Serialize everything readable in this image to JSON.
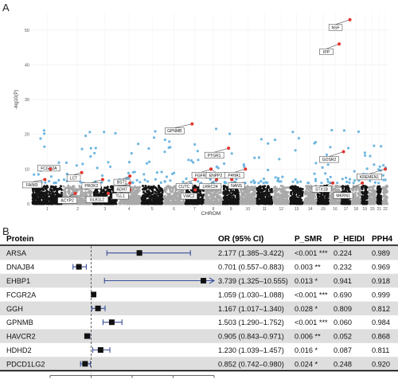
{
  "panel_a": {
    "letter": "A",
    "chart_data": {
      "type": "scatter",
      "title": "",
      "xlabel": "CHROM",
      "ylabel": "-log10(P)",
      "ylim": [
        0,
        55
      ],
      "yticks": [
        0,
        10,
        20,
        30,
        40,
        50
      ],
      "xticks": [
        "1",
        "2",
        "3",
        "4",
        "5",
        "6",
        "7",
        "8",
        "9",
        "10",
        "11",
        "12",
        "13",
        "14",
        "15",
        "16",
        "17",
        "18",
        "19",
        "20",
        "21",
        "22"
      ],
      "grid": true,
      "colors": {
        "nonsig_odd": "#141414",
        "nonsig_even": "#a9a9a9",
        "significant": "#6fb6e0",
        "labeled": "#e2342d"
      },
      "labeled_points": [
        {
          "label": "NSF",
          "chrom": 17,
          "p": 53
        },
        {
          "label": "IPP",
          "chrom": 16,
          "p": 46
        },
        {
          "label": "GPNMB",
          "chrom": 7,
          "p": 23
        },
        {
          "label": "GOSR2",
          "chrom": 17,
          "p": 15
        },
        {
          "label": "PTGR1",
          "chrom": 9,
          "p": 16
        },
        {
          "label": "FCGR2A",
          "chrom": 1,
          "p": 10
        },
        {
          "label": "FAIM3",
          "chrom": 1,
          "p": 7
        },
        {
          "label": "ACYP2",
          "chrom": 2,
          "p": 3
        },
        {
          "label": "LCT",
          "chrom": 2,
          "p": 9
        },
        {
          "label": "GLB1L2",
          "chrom": 3,
          "p": 3
        },
        {
          "label": "PROK2",
          "chrom": 3,
          "p": 7
        },
        {
          "label": "BST1",
          "chrom": 4,
          "p": 8
        },
        {
          "label": "TLL1",
          "chrom": 4,
          "p": 4
        },
        {
          "label": "ADH7",
          "chrom": 4,
          "p": 6
        },
        {
          "label": "VWC2",
          "chrom": 7,
          "p": 4
        },
        {
          "label": "FGFR1",
          "chrom": 8,
          "p": 10
        },
        {
          "label": "CUTC",
          "chrom": 10,
          "p": 7
        },
        {
          "label": "LRRC24",
          "chrom": 8,
          "p": 7
        },
        {
          "label": "ENPP2",
          "chrom": 8,
          "p": 10
        },
        {
          "label": "NANS",
          "chrom": 9,
          "p": 7
        },
        {
          "label": "P4HA1",
          "chrom": 10,
          "p": 10
        },
        {
          "label": "STX1B",
          "chrom": 16,
          "p": 6
        },
        {
          "label": "MKRN1",
          "chrom": 7,
          "p": 6
        },
        {
          "label": "KREMEN1",
          "chrom": 22,
          "p": 10
        }
      ]
    }
  },
  "panel_b": {
    "letter": "B",
    "headers": {
      "protein": "Protein",
      "or": "OR (95% CI)",
      "p_smr": "P_SMR",
      "p_heidi": "P_HEIDI",
      "pph4": "PPH4"
    },
    "chart_data": {
      "type": "forest",
      "xlim": [
        0,
        4
      ],
      "xticks": [
        0,
        1,
        2,
        3,
        4
      ],
      "reference_line": 1,
      "rows": [
        {
          "protein": "ARSA",
          "or": 2.177,
          "lo": 1.385,
          "hi": 3.422,
          "or_text": "2.177 (1.385–3.422)",
          "p_smr": "<0.001 ***",
          "p_heidi": "0.224",
          "pph4": "0.989",
          "shaded": true,
          "truncated": false
        },
        {
          "protein": "DNAJB4",
          "or": 0.701,
          "lo": 0.557,
          "hi": 0.883,
          "or_text": "0.701 (0.557–0.883)",
          "p_smr": "0.003 **",
          "p_heidi": "0.232",
          "pph4": "0.969",
          "shaded": false,
          "truncated": false
        },
        {
          "protein": "EHBP1",
          "or": 3.739,
          "lo": 1.325,
          "hi": 10.555,
          "or_text": "3.739 (1.325–10.555)",
          "p_smr": "0.013 *",
          "p_heidi": "0.941",
          "pph4": "0.918",
          "shaded": true,
          "truncated": true
        },
        {
          "protein": "FCGR2A",
          "or": 1.059,
          "lo": 1.03,
          "hi": 1.088,
          "or_text": "1.059 (1.030–1.088)",
          "p_smr": "<0.001 ***",
          "p_heidi": "0.690",
          "pph4": "0.999",
          "shaded": false,
          "truncated": false
        },
        {
          "protein": "GGH",
          "or": 1.167,
          "lo": 1.017,
          "hi": 1.34,
          "or_text": "1.167 (1.017–1.340)",
          "p_smr": "0.028 *",
          "p_heidi": "0.809",
          "pph4": "0.812",
          "shaded": true,
          "truncated": false
        },
        {
          "protein": "GPNMB",
          "or": 1.503,
          "lo": 1.29,
          "hi": 1.752,
          "or_text": "1.503 (1.290–1.752)",
          "p_smr": "<0.001 ***",
          "p_heidi": "0.060",
          "pph4": "0.984",
          "shaded": false,
          "truncated": false
        },
        {
          "protein": "HAVCR2",
          "or": 0.905,
          "lo": 0.843,
          "hi": 0.971,
          "or_text": "0.905 (0.843–0.971)",
          "p_smr": "0.006 **",
          "p_heidi": "0.052",
          "pph4": "0.868",
          "shaded": true,
          "truncated": false
        },
        {
          "protein": "HDHD2",
          "or": 1.23,
          "lo": 1.039,
          "hi": 1.457,
          "or_text": "1.230 (1.039–1.457)",
          "p_smr": "0.016 *",
          "p_heidi": "0.087",
          "pph4": "0.811",
          "shaded": false,
          "truncated": false
        },
        {
          "protein": "PDCD1LG2",
          "or": 0.852,
          "lo": 0.742,
          "hi": 0.98,
          "or_text": "0.852 (0.742–0.980)",
          "p_smr": "0.024 *",
          "p_heidi": "0.248",
          "pph4": "0.920",
          "shaded": true,
          "truncated": false
        }
      ]
    }
  }
}
